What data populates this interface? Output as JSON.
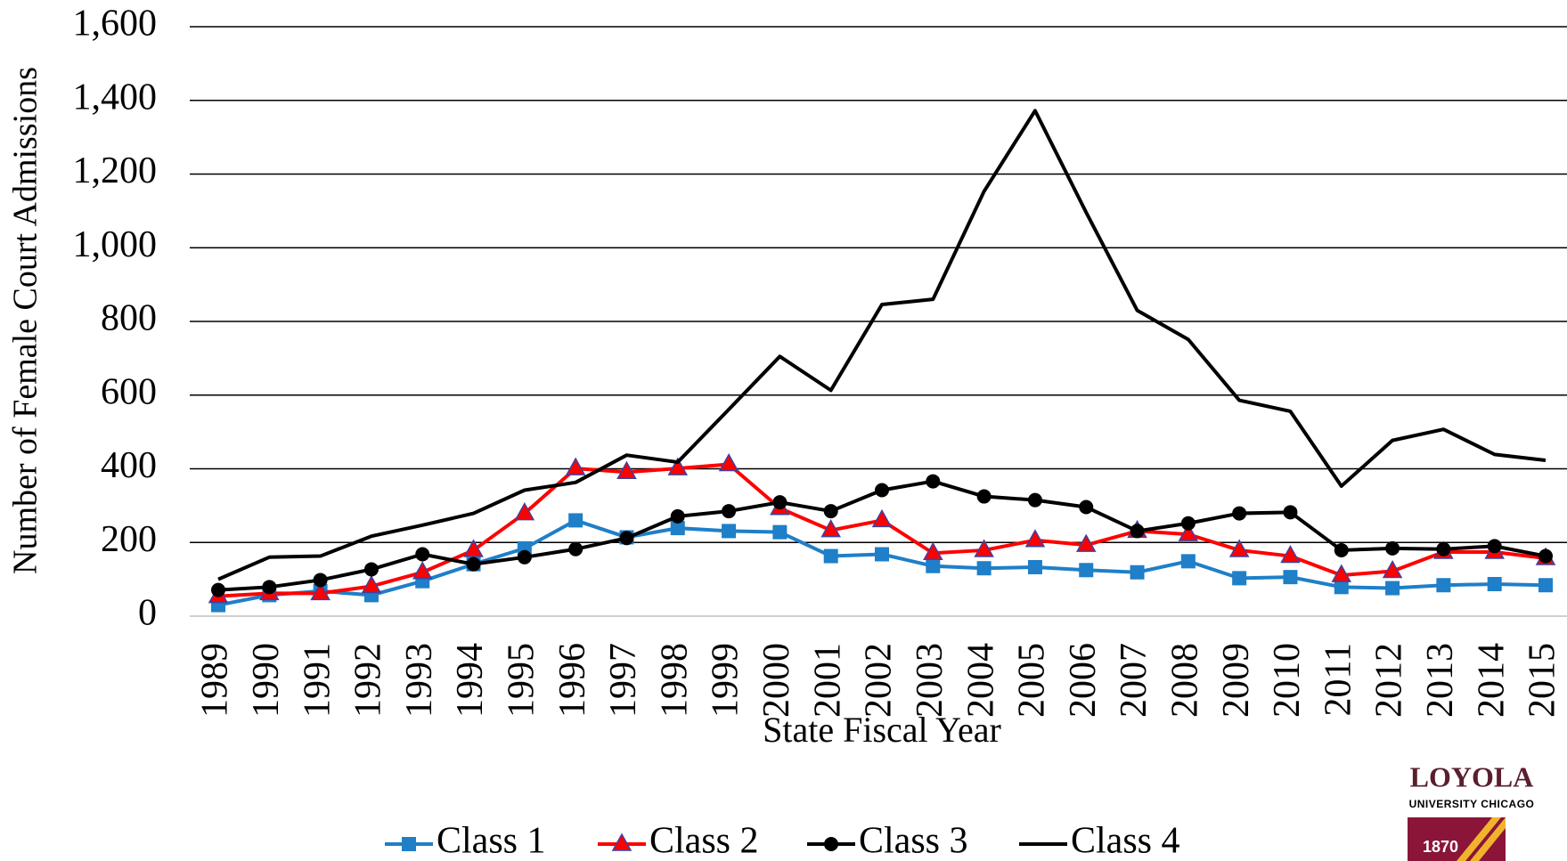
{
  "chart_data": {
    "type": "line",
    "y_label": "Number of Female Court Admissions",
    "x_label": "State Fiscal Year",
    "categories": [
      "1989",
      "1990",
      "1991",
      "1992",
      "1993",
      "1994",
      "1995",
      "1996",
      "1997",
      "1998",
      "1999",
      "2000",
      "2001",
      "2002",
      "2003",
      "2004",
      "2005",
      "2006",
      "2007",
      "2008",
      "2009",
      "2010",
      "2011",
      "2012",
      "2013",
      "2014",
      "2015"
    ],
    "series": [
      {
        "name": "Class 1",
        "color": "#1f7fc8",
        "marker": "square",
        "values": [
          30,
          57,
          68,
          57,
          95,
          141,
          184,
          260,
          214,
          239,
          231,
          228,
          163,
          168,
          136,
          130,
          133,
          125,
          119,
          149,
          103,
          106,
          79,
          76,
          84,
          87,
          84
        ]
      },
      {
        "name": "Class 2",
        "color": "#ff0000",
        "marker": "triangle",
        "values": [
          54,
          62,
          62,
          81,
          119,
          179,
          279,
          401,
          391,
          401,
          412,
          293,
          233,
          260,
          171,
          179,
          206,
          193,
          231,
          222,
          179,
          163,
          111,
          122,
          174,
          174,
          157
        ]
      },
      {
        "name": "Class 3",
        "color": "#000000",
        "marker": "circle",
        "values": [
          71,
          79,
          98,
          127,
          168,
          141,
          160,
          182,
          212,
          271,
          285,
          309,
          285,
          342,
          366,
          325,
          315,
          296,
          231,
          252,
          279,
          282,
          179,
          184,
          182,
          190,
          163
        ]
      },
      {
        "name": "Class 4",
        "color": "#000000",
        "marker": "none",
        "values": [
          100,
          160,
          163,
          217,
          247,
          279,
          342,
          363,
          437,
          418,
          561,
          705,
          613,
          846,
          860,
          1153,
          1372,
          1096,
          830,
          751,
          586,
          556,
          353,
          477,
          507,
          439,
          423
        ]
      }
    ],
    "ylim": [
      0,
      1600
    ],
    "yticks": [
      0,
      200,
      400,
      600,
      800,
      {
        "value": 1000,
        "label": "1,000"
      },
      {
        "value": 1200,
        "label": "1,200"
      },
      {
        "value": 1400,
        "label": "1,400"
      },
      {
        "value": 1600,
        "label": "1,600"
      }
    ],
    "grid": true,
    "legend": "bottom"
  },
  "logo": {
    "name": "LOYOLA",
    "subtitle": "UNIVERSITY CHICAGO",
    "year": "1870"
  }
}
